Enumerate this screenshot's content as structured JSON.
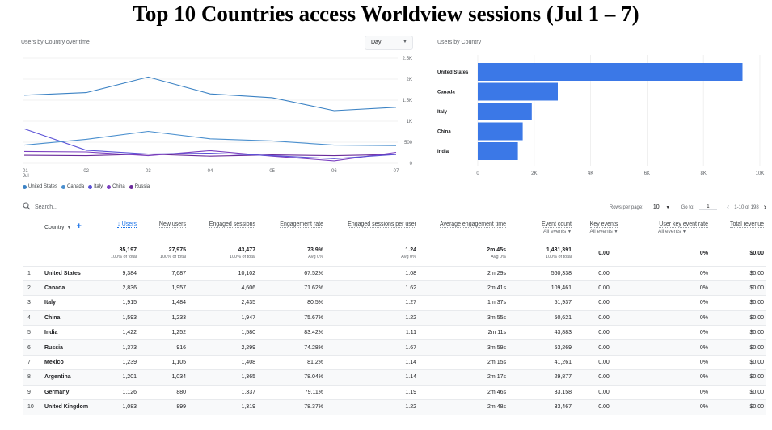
{
  "header": {
    "title": "Top 10 Countries access Worldview sessions (Jul 1 – 7)"
  },
  "line_card": {
    "title": "Users by Country over time",
    "granularity": "Day"
  },
  "bar_card": {
    "title": "Users by Country"
  },
  "chart_data": [
    {
      "type": "line",
      "title": "Users by Country over time",
      "x": [
        "01 Jul",
        "02",
        "03",
        "04",
        "05",
        "06",
        "07"
      ],
      "ylim": [
        0,
        2500
      ],
      "y_ticks": [
        "0",
        "500",
        "1K",
        "1.5K",
        "2K",
        "2.5K"
      ],
      "grid": true,
      "legend_position": "bottom-left",
      "series": [
        {
          "name": "United States",
          "color": "#3b82c4",
          "values": [
            1620,
            1680,
            2050,
            1650,
            1560,
            1250,
            1330
          ]
        },
        {
          "name": "Canada",
          "color": "#4a8fce",
          "values": [
            430,
            570,
            760,
            580,
            530,
            430,
            420
          ]
        },
        {
          "name": "Italy",
          "color": "#5b52d6",
          "values": [
            820,
            310,
            220,
            240,
            180,
            110,
            210
          ]
        },
        {
          "name": "China",
          "color": "#7b3fc0",
          "values": [
            280,
            270,
            180,
            300,
            170,
            60,
            260
          ]
        },
        {
          "name": "Russia",
          "color": "#6a2a9a",
          "values": [
            190,
            180,
            220,
            170,
            200,
            180,
            210
          ]
        }
      ]
    },
    {
      "type": "bar",
      "orientation": "horizontal",
      "title": "Users by Country",
      "categories": [
        "United States",
        "Canada",
        "Italy",
        "China",
        "India"
      ],
      "values": [
        9384,
        2836,
        1915,
        1593,
        1422
      ],
      "xlim": [
        0,
        10000
      ],
      "x_ticks": [
        "0",
        "2K",
        "4K",
        "6K",
        "8K",
        "10K"
      ],
      "color": "#3b78e7"
    }
  ],
  "table": {
    "search_placeholder": "Search...",
    "rows_per_page_label": "Rows per page:",
    "rows_per_page": "10",
    "goto_label": "Go to:",
    "goto_value": "1",
    "range_label": "1-10 of 198",
    "columns": {
      "country": "Country",
      "users": "↓ Users",
      "new_users": "New users",
      "engaged_sessions": "Engaged sessions",
      "engagement_rate": "Engagement rate",
      "engaged_per_user": "Engaged sessions per user",
      "avg_time": "Average engagement time",
      "event_count": "Event count",
      "key_events": "Key events",
      "user_key_rate": "User key event rate",
      "revenue": "Total revenue",
      "all_events": "All events"
    },
    "totals": {
      "users": "35,197",
      "users_sub": "100% of total",
      "new_users": "27,975",
      "new_users_sub": "100% of total",
      "engaged_sessions": "43,477",
      "engaged_sessions_sub": "100% of total",
      "engagement_rate": "73.9%",
      "engagement_rate_sub": "Avg 0%",
      "engaged_per_user": "1.24",
      "engaged_per_user_sub": "Avg 0%",
      "avg_time": "2m 45s",
      "avg_time_sub": "Avg 0%",
      "event_count": "1,431,391",
      "event_count_sub": "100% of total",
      "key_events": "0.00",
      "user_key_rate": "0%",
      "revenue": "$0.00"
    },
    "rows": [
      [
        "1",
        "United States",
        "9,384",
        "7,687",
        "10,102",
        "67.52%",
        "1.08",
        "2m 29s",
        "560,338",
        "0.00",
        "0%",
        "$0.00"
      ],
      [
        "2",
        "Canada",
        "2,836",
        "1,957",
        "4,606",
        "71.62%",
        "1.62",
        "2m 41s",
        "109,461",
        "0.00",
        "0%",
        "$0.00"
      ],
      [
        "3",
        "Italy",
        "1,915",
        "1,484",
        "2,435",
        "80.5%",
        "1.27",
        "1m 37s",
        "51,937",
        "0.00",
        "0%",
        "$0.00"
      ],
      [
        "4",
        "China",
        "1,593",
        "1,233",
        "1,947",
        "75.67%",
        "1.22",
        "3m 55s",
        "50,621",
        "0.00",
        "0%",
        "$0.00"
      ],
      [
        "5",
        "India",
        "1,422",
        "1,252",
        "1,580",
        "83.42%",
        "1.11",
        "2m 11s",
        "43,883",
        "0.00",
        "0%",
        "$0.00"
      ],
      [
        "6",
        "Russia",
        "1,373",
        "916",
        "2,299",
        "74.28%",
        "1.67",
        "3m 59s",
        "53,269",
        "0.00",
        "0%",
        "$0.00"
      ],
      [
        "7",
        "Mexico",
        "1,239",
        "1,105",
        "1,408",
        "81.2%",
        "1.14",
        "2m 15s",
        "41,261",
        "0.00",
        "0%",
        "$0.00"
      ],
      [
        "8",
        "Argentina",
        "1,201",
        "1,034",
        "1,365",
        "78.04%",
        "1.14",
        "2m 17s",
        "29,877",
        "0.00",
        "0%",
        "$0.00"
      ],
      [
        "9",
        "Germany",
        "1,126",
        "880",
        "1,337",
        "79.11%",
        "1.19",
        "2m 46s",
        "33,158",
        "0.00",
        "0%",
        "$0.00"
      ],
      [
        "10",
        "United Kingdom",
        "1,083",
        "899",
        "1,319",
        "78.37%",
        "1.22",
        "2m 48s",
        "33,467",
        "0.00",
        "0%",
        "$0.00"
      ]
    ]
  }
}
